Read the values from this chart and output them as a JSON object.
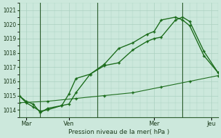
{
  "title": "",
  "xlabel": "Pression niveau de la mer( hPa )",
  "bg_color": "#cce8dc",
  "grid_color": "#aad0c0",
  "line_color": "#1a6b1a",
  "ylim": [
    1013.5,
    1021.5
  ],
  "yticks": [
    1014,
    1015,
    1016,
    1017,
    1018,
    1019,
    1020,
    1021
  ],
  "xtick_labels": [
    "Mar",
    "Ven",
    "Mer",
    "Jeu"
  ],
  "xtick_positions": [
    0.5,
    3.5,
    9.5,
    13.5
  ],
  "vline_positions": [
    1.5,
    5.5,
    11.5
  ],
  "series1_x": [
    0,
    0.5,
    1,
    1.5,
    2,
    3,
    3.5,
    4,
    5,
    6,
    7,
    8,
    9,
    9.5,
    10,
    11,
    11.5,
    12,
    13,
    14
  ],
  "series1_y": [
    1015.0,
    1014.5,
    1014.2,
    1013.9,
    1014.0,
    1014.3,
    1014.4,
    1015.2,
    1016.5,
    1017.1,
    1017.3,
    1018.2,
    1018.8,
    1019.0,
    1019.1,
    1020.3,
    1020.5,
    1020.2,
    1018.1,
    1016.6
  ],
  "series2_x": [
    0,
    0.5,
    1,
    1.5,
    2,
    3,
    3.5,
    4,
    5,
    6,
    7,
    8,
    9,
    9.5,
    10,
    11,
    11.5,
    12,
    13,
    14
  ],
  "series2_y": [
    1015.0,
    1014.6,
    1014.4,
    1013.8,
    1014.1,
    1014.3,
    1015.1,
    1016.2,
    1016.5,
    1017.2,
    1018.3,
    1018.7,
    1019.3,
    1019.5,
    1020.3,
    1020.5,
    1020.3,
    1019.9,
    1017.8,
    1016.6
  ],
  "series3_x": [
    0,
    2,
    4,
    6,
    8,
    10,
    12,
    14
  ],
  "series3_y": [
    1014.5,
    1014.6,
    1014.8,
    1015.0,
    1015.2,
    1015.6,
    1016.0,
    1016.4
  ],
  "figsize": [
    3.2,
    2.0
  ],
  "dpi": 100
}
